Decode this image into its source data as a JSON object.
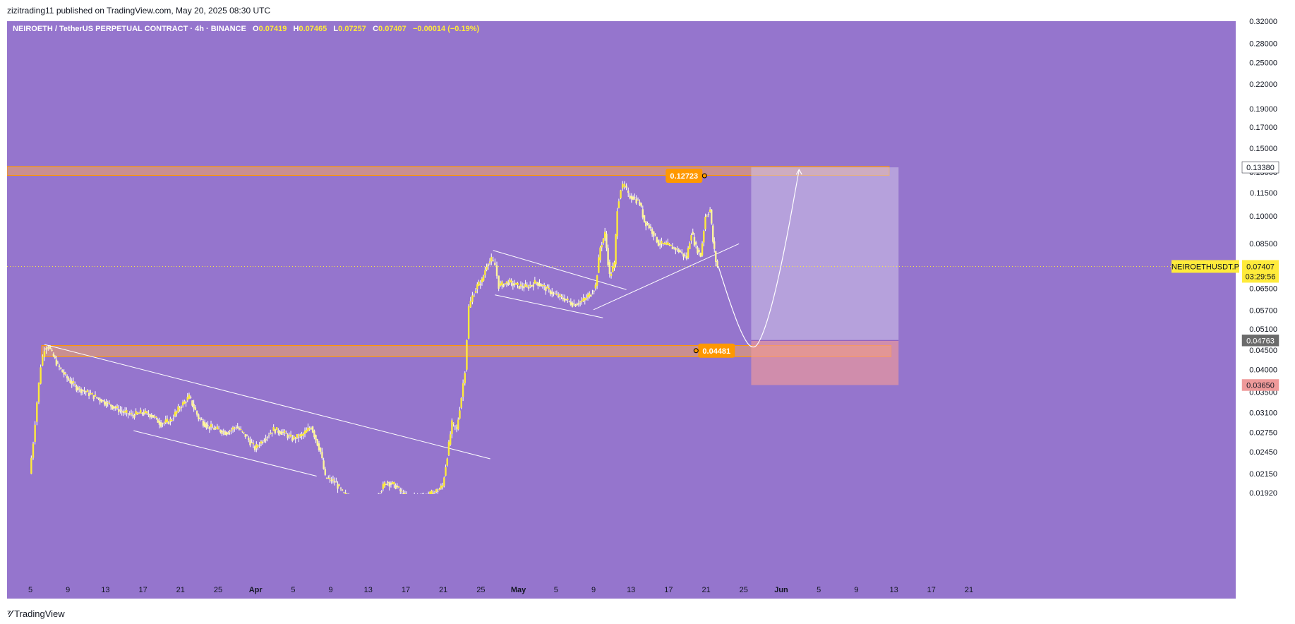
{
  "header": {
    "publisher_line": "zizitrading11 published on TradingView.com, May 20, 2025 08:30 UTC"
  },
  "legend": {
    "symbol": "NEIROETH / TetherUS PERPETUAL CONTRACT · 4h · BINANCE",
    "o_label": "O",
    "o_value": "0.07419",
    "h_label": "H",
    "h_value": "0.07465",
    "l_label": "L",
    "l_value": "0.07257",
    "c_label": "C",
    "c_value": "0.07407",
    "change": "−0.00014 (−0.19%)"
  },
  "footer": {
    "brand": "TradingView",
    "logo_icon": "tradingview-logo-icon"
  },
  "colors": {
    "background": "#9575cd",
    "candle": "#ffeb3b",
    "wick": "#ffffff",
    "zone_fill": "#f4a460",
    "zone_border": "#ff9800",
    "label_orange": "#ff9800",
    "target_fill": "#d1c4e9",
    "stop_fill": "#ef9a9a",
    "line": "#ffffff",
    "current_price_tag": "#ffeb3b"
  },
  "chart_data": {
    "type": "candlestick",
    "symbol": "NEIROETHUSDT.P",
    "timeframe": "4h",
    "exchange": "BINANCE",
    "y_scale": "log",
    "ylim": [
      0.0188,
      0.32
    ],
    "y_ticks": [
      "0.32000",
      "0.28000",
      "0.25000",
      "0.22000",
      "0.19000",
      "0.17000",
      "0.15000",
      "0.13000",
      "0.11500",
      "0.10000",
      "0.08500",
      "0.07500",
      "0.06500",
      "0.05700",
      "0.05100",
      "0.04500",
      "0.04000",
      "0.03500",
      "0.03100",
      "0.02750",
      "0.02450",
      "0.02150",
      "0.01920"
    ],
    "x_ticks": [
      "5",
      "9",
      "13",
      "17",
      "21",
      "25",
      "Apr",
      "5",
      "9",
      "13",
      "17",
      "21",
      "25",
      "May",
      "5",
      "9",
      "13",
      "17",
      "21",
      "25",
      "Jun",
      "5",
      "9",
      "13",
      "17",
      "21"
    ],
    "price_path": [
      [
        5.0,
        0.0215
      ],
      [
        5.4,
        0.026
      ],
      [
        5.8,
        0.033
      ],
      [
        6.2,
        0.041
      ],
      [
        6.6,
        0.0455
      ],
      [
        7.0,
        0.046
      ],
      [
        7.4,
        0.044
      ],
      [
        8.0,
        0.041
      ],
      [
        9.0,
        0.038
      ],
      [
        10.0,
        0.036
      ],
      [
        11.0,
        0.035
      ],
      [
        12.0,
        0.034
      ],
      [
        13.0,
        0.033
      ],
      [
        14.0,
        0.032
      ],
      [
        15.0,
        0.031
      ],
      [
        16.0,
        0.0305
      ],
      [
        17.0,
        0.031
      ],
      [
        18.0,
        0.0305
      ],
      [
        19.0,
        0.029
      ],
      [
        20.0,
        0.0295
      ],
      [
        21.0,
        0.032
      ],
      [
        22.0,
        0.034
      ],
      [
        23.0,
        0.03
      ],
      [
        24.0,
        0.0285
      ],
      [
        25.0,
        0.028
      ],
      [
        26.0,
        0.0275
      ],
      [
        27.0,
        0.0285
      ],
      [
        28.0,
        0.027
      ],
      [
        29.0,
        0.025
      ],
      [
        30.0,
        0.0265
      ],
      [
        31.0,
        0.028
      ],
      [
        32.0,
        0.0275
      ],
      [
        33.0,
        0.0265
      ],
      [
        34.0,
        0.027
      ],
      [
        35.0,
        0.0285
      ],
      [
        36.0,
        0.0245
      ],
      [
        36.5,
        0.021
      ],
      [
        37.5,
        0.0205
      ],
      [
        38.5,
        0.019
      ],
      [
        39.0,
        0.0187
      ]
    ],
    "price_path_2": [
      [
        42.0,
        0.0188
      ],
      [
        43.0,
        0.0205
      ],
      [
        44.0,
        0.02
      ],
      [
        45.0,
        0.0188
      ],
      [
        46.0,
        0.0187
      ],
      [
        47.5,
        0.0189
      ],
      [
        48.5,
        0.0195
      ],
      [
        49.0,
        0.02
      ],
      [
        49.5,
        0.024
      ],
      [
        50.0,
        0.029
      ],
      [
        50.5,
        0.028
      ],
      [
        51.0,
        0.034
      ],
      [
        51.4,
        0.04
      ],
      [
        51.8,
        0.058
      ],
      [
        52.2,
        0.062
      ],
      [
        52.7,
        0.066
      ],
      [
        53.2,
        0.068
      ],
      [
        53.7,
        0.075
      ],
      [
        54.2,
        0.077
      ],
      [
        54.6,
        0.0745
      ],
      [
        55.0,
        0.066
      ],
      [
        56.0,
        0.0675
      ],
      [
        57.0,
        0.066
      ],
      [
        58.0,
        0.0655
      ],
      [
        59.0,
        0.0675
      ],
      [
        60.0,
        0.065
      ],
      [
        61.0,
        0.0625
      ],
      [
        62.0,
        0.061
      ],
      [
        63.0,
        0.059
      ],
      [
        64.0,
        0.0605
      ],
      [
        64.8,
        0.063
      ],
      [
        65.3,
        0.066
      ],
      [
        65.8,
        0.083
      ],
      [
        66.3,
        0.09
      ],
      [
        66.8,
        0.07
      ],
      [
        67.3,
        0.075
      ],
      [
        67.6,
        0.105
      ],
      [
        68.0,
        0.118
      ],
      [
        68.4,
        0.12
      ],
      [
        68.8,
        0.113
      ],
      [
        69.3,
        0.112
      ],
      [
        70.0,
        0.108
      ],
      [
        70.5,
        0.097
      ],
      [
        71.0,
        0.094
      ],
      [
        71.5,
        0.09
      ],
      [
        72.0,
        0.085
      ],
      [
        73.0,
        0.084
      ],
      [
        74.0,
        0.082
      ],
      [
        75.0,
        0.078
      ],
      [
        75.5,
        0.091
      ],
      [
        76.0,
        0.083
      ],
      [
        76.5,
        0.079
      ],
      [
        77.0,
        0.1
      ],
      [
        77.5,
        0.104
      ],
      [
        77.8,
        0.086
      ],
      [
        78.1,
        0.0765
      ],
      [
        78.3,
        0.0741
      ]
    ],
    "x_day_axis": {
      "first_tick_day": 5,
      "tick_interval_days": 4
    },
    "zones": [
      {
        "name": "resistance",
        "low": 0.1275,
        "high": 0.1345,
        "x_end_day": 96.5
      },
      {
        "name": "support",
        "low": 0.0432,
        "high": 0.0462,
        "x_start_day": 6.2,
        "x_end_day": 96.7
      }
    ],
    "price_labels": [
      {
        "text": "0.12723",
        "value": 0.12723,
        "day": 76.3
      },
      {
        "text": "0.04481",
        "value": 0.04481,
        "day": 76.3
      }
    ],
    "trendlines": [
      {
        "from": [
          6.5,
          0.0465
        ],
        "to": [
          54.0,
          0.0235
        ]
      },
      {
        "from": [
          16.0,
          0.0278
        ],
        "to": [
          35.5,
          0.0212
        ]
      },
      {
        "from": [
          54.3,
          0.0815
        ],
        "to": [
          68.5,
          0.0645
        ]
      },
      {
        "from": [
          54.5,
          0.0625
        ],
        "to": [
          66.0,
          0.0545
        ]
      },
      {
        "from": [
          65.0,
          0.0572
        ],
        "to": [
          80.5,
          0.0848
        ]
      }
    ],
    "position_tool": {
      "entry": 0.04763,
      "target": 0.1338,
      "stop": 0.0365,
      "start_day": 81.8,
      "end_day": 97.5
    },
    "projection_path": [
      [
        78.3,
        0.0741
      ],
      [
        79.5,
        0.06
      ],
      [
        80.7,
        0.05
      ],
      [
        81.7,
        0.0455
      ],
      [
        82.6,
        0.0462
      ],
      [
        84.0,
        0.058
      ],
      [
        85.5,
        0.085
      ],
      [
        86.9,
        0.132
      ]
    ],
    "current_price": {
      "value": 0.07407,
      "symbol_tag": "NEIROETHUSDT.P",
      "price_text": "0.07407",
      "countdown": "03:29:56"
    },
    "axis_tags": [
      {
        "text": "0.13380",
        "value": 0.1338,
        "style": "target"
      },
      {
        "text": "0.04763",
        "value": 0.04763,
        "style": "entry"
      },
      {
        "text": "0.03650",
        "value": 0.0365,
        "style": "stop"
      }
    ]
  }
}
